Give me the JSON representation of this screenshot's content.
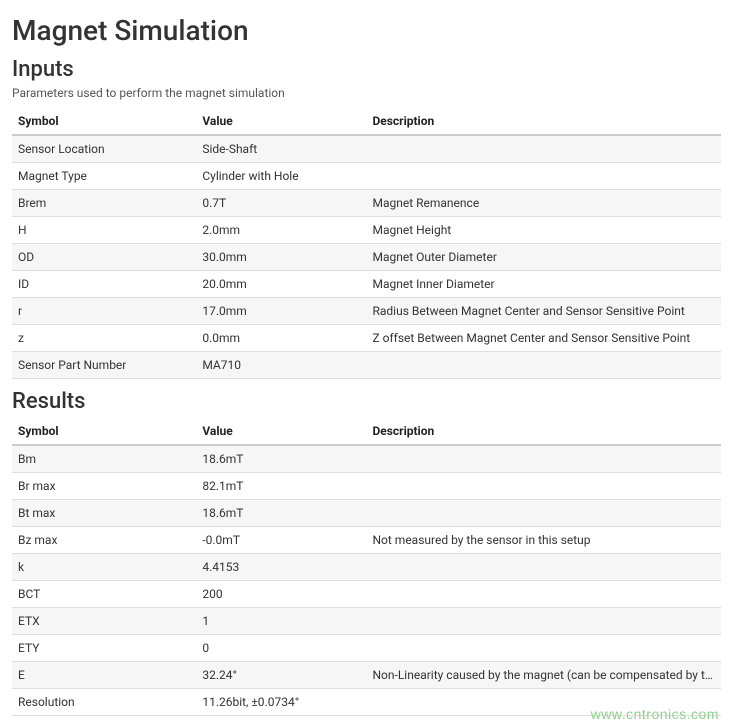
{
  "page": {
    "title": "Magnet Simulation"
  },
  "inputs": {
    "heading": "Inputs",
    "caption": "Parameters used to perform the magnet simulation",
    "columns": {
      "symbol": "Symbol",
      "value": "Value",
      "description": "Description"
    },
    "rows": [
      {
        "symbol": "Sensor Location",
        "value": "Side-Shaft",
        "description": ""
      },
      {
        "symbol": "Magnet Type",
        "value": "Cylinder with Hole",
        "description": ""
      },
      {
        "symbol": "Brem",
        "value": "0.7T",
        "description": "Magnet Remanence"
      },
      {
        "symbol": "H",
        "value": "2.0mm",
        "description": "Magnet Height"
      },
      {
        "symbol": "OD",
        "value": "30.0mm",
        "description": "Magnet Outer Diameter"
      },
      {
        "symbol": "ID",
        "value": "20.0mm",
        "description": "Magnet Inner Diameter"
      },
      {
        "symbol": "r",
        "value": "17.0mm",
        "description": "Radius Between Magnet Center and Sensor Sensitive Point"
      },
      {
        "symbol": "z",
        "value": "0.0mm",
        "description": "Z offset Between Magnet Center and Sensor Sensitive Point"
      },
      {
        "symbol": "Sensor Part Number",
        "value": "MA710",
        "description": ""
      }
    ]
  },
  "results": {
    "heading": "Results",
    "columns": {
      "symbol": "Symbol",
      "value": "Value",
      "description": "Description"
    },
    "rows": [
      {
        "symbol": "Bm",
        "value": "18.6mT",
        "description": ""
      },
      {
        "symbol": "Br max",
        "value": "82.1mT",
        "description": ""
      },
      {
        "symbol": "Bt max",
        "value": "18.6mT",
        "description": ""
      },
      {
        "symbol": "Bz max",
        "value": "-0.0mT",
        "description": "Not measured by the sensor in this setup"
      },
      {
        "symbol": "k",
        "value": "4.4153",
        "description": ""
      },
      {
        "symbol": "BCT",
        "value": "200",
        "description": ""
      },
      {
        "symbol": "ETX",
        "value": "1",
        "description": ""
      },
      {
        "symbol": "ETY",
        "value": "0",
        "description": ""
      },
      {
        "symbol": "E",
        "value": "32.24°",
        "description": "Non-Linearity caused by the magnet (can be compensated by the BCT)"
      },
      {
        "symbol": "Resolution",
        "value": "11.26bit, ±0.0734°",
        "description": ""
      }
    ]
  },
  "watermark": "www.cntronics.com"
}
